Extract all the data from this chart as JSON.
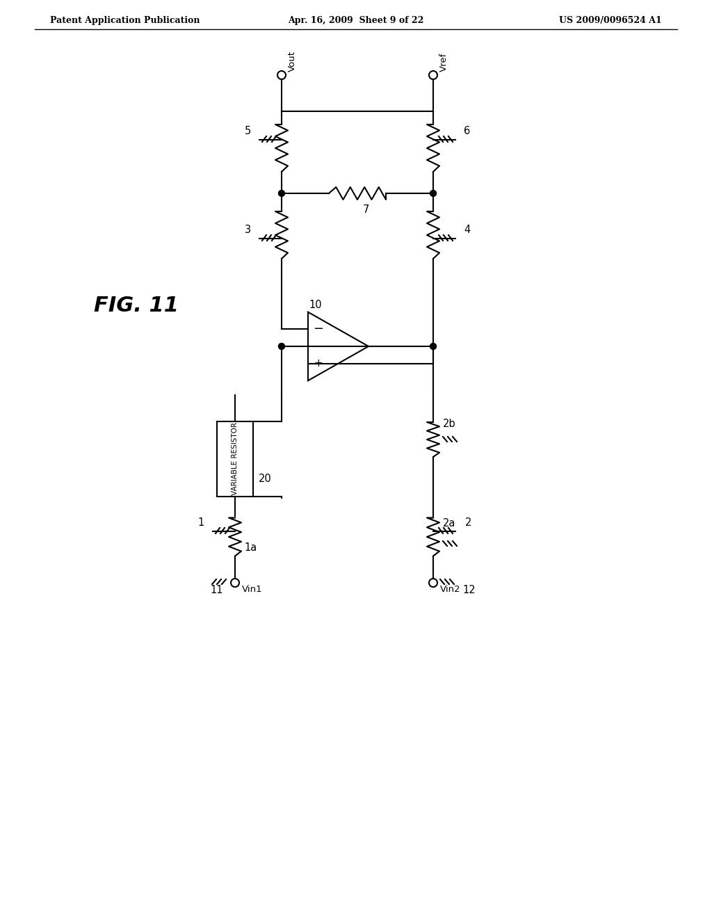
{
  "header_left": "Patent Application Publication",
  "header_center": "Apr. 16, 2009  Sheet 9 of 22",
  "header_right": "US 2009/0096524 A1",
  "fig_label": "FIG. 11",
  "labels": {
    "vout": "Vout",
    "vref": "Vref",
    "vin1": "Vin1",
    "vin2": "Vin2",
    "5": "5",
    "6": "6",
    "3": "3",
    "4": "4",
    "7": "7",
    "10": "10",
    "20": "20",
    "1": "1",
    "2": "2",
    "1a": "1a",
    "2a": "2a",
    "2b": "2b",
    "11": "11",
    "12": "12",
    "var_res": "VARIABLE RESISTOR"
  }
}
